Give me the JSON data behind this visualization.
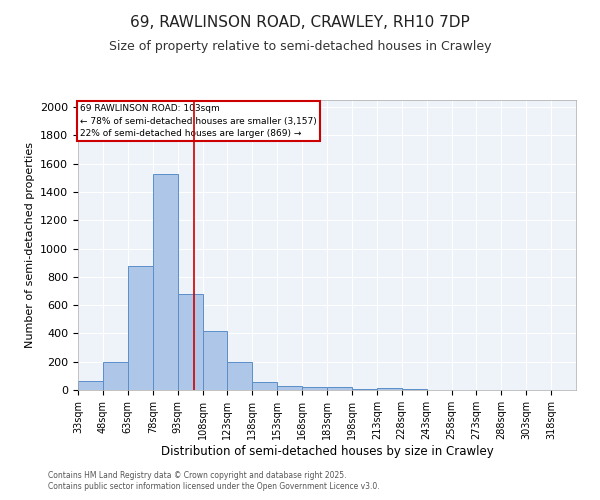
{
  "title": "69, RAWLINSON ROAD, CRAWLEY, RH10 7DP",
  "subtitle": "Size of property relative to semi-detached houses in Crawley",
  "xlabel": "Distribution of semi-detached houses by size in Crawley",
  "ylabel": "Number of semi-detached properties",
  "footnote1": "Contains HM Land Registry data © Crown copyright and database right 2025.",
  "footnote2": "Contains public sector information licensed under the Open Government Licence v3.0.",
  "bin_edges": [
    33,
    48,
    63,
    78,
    93,
    108,
    123,
    138,
    153,
    168,
    183,
    198,
    213,
    228,
    243,
    258,
    273,
    288,
    303,
    318,
    333
  ],
  "bar_heights": [
    65,
    200,
    880,
    1530,
    680,
    420,
    195,
    60,
    25,
    20,
    20,
    10,
    15,
    5,
    2,
    1,
    1,
    1,
    1,
    1
  ],
  "bar_color": "#aec6e8",
  "bar_edge_color": "#5b8fc8",
  "property_size": 103,
  "property_line_color": "#cc0000",
  "annotation_title": "69 RAWLINSON ROAD: 103sqm",
  "annotation_line1": "← 78% of semi-detached houses are smaller (3,157)",
  "annotation_line2": "22% of semi-detached houses are larger (869) →",
  "annotation_box_color": "#cc0000",
  "ylim": [
    0,
    2050
  ],
  "yticks": [
    0,
    200,
    400,
    600,
    800,
    1000,
    1200,
    1400,
    1600,
    1800,
    2000
  ],
  "bg_color": "#eef2f9",
  "grid_color": "#ffffff",
  "title_fontsize": 11,
  "subtitle_fontsize": 9
}
